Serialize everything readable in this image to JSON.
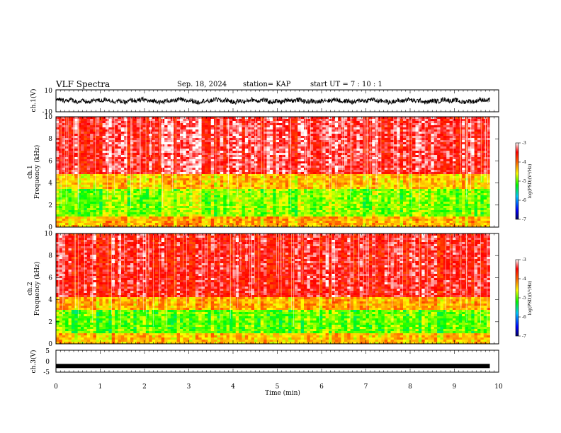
{
  "header": {
    "title": "VLF Spectra",
    "date": "Sep. 18, 2024",
    "station": "station= KAP",
    "start": "start  UT  =   7 : 10 : 1"
  },
  "chart_data": [
    {
      "type": "line",
      "ylabel": "ch.1(V)",
      "xlim": [
        0,
        10
      ],
      "ylim": [
        -10,
        10
      ],
      "yticks": [
        "10",
        "-10"
      ],
      "description_values": {
        "typical_range": [
          -3,
          3
        ],
        "end_time_min": 9.8
      }
    },
    {
      "type": "heatmap",
      "ylabel": "ch.1\nFrequency  (kHz)",
      "xlim": [
        0,
        10
      ],
      "ylim": [
        0,
        10
      ],
      "yticks": [
        "0",
        "2",
        "4",
        "6",
        "8",
        "10"
      ],
      "colorbar": {
        "label": "log(PSD)(V²/Hz)",
        "ticks": [
          "-3",
          "-4",
          "-5",
          "-6",
          "-7"
        ],
        "range": [
          -7,
          -3
        ]
      },
      "bands_khz": [
        {
          "from": 0,
          "to": 1,
          "level": -4.3
        },
        {
          "from": 1,
          "to": 3.5,
          "level": -4.9
        },
        {
          "from": 3.5,
          "to": 4.8,
          "level": -4.4
        },
        {
          "from": 4.8,
          "to": 10,
          "level": -3.4
        }
      ]
    },
    {
      "type": "heatmap",
      "ylabel": "ch.2\nFrequency  (kHz)",
      "xlim": [
        0,
        10
      ],
      "ylim": [
        0,
        10
      ],
      "yticks": [
        "0",
        "2",
        "4",
        "6",
        "8",
        "10"
      ],
      "colorbar": {
        "label": "log(PSD)(V²/Hz)",
        "ticks": [
          "-3",
          "-4",
          "-5",
          "-6",
          "-7"
        ],
        "range": [
          -7,
          -3
        ]
      },
      "bands_khz": [
        {
          "from": 0,
          "to": 1,
          "level": -4.4
        },
        {
          "from": 1,
          "to": 3,
          "level": -5.0
        },
        {
          "from": 3,
          "to": 4.2,
          "level": -4.3
        },
        {
          "from": 4.2,
          "to": 10,
          "level": -3.5
        }
      ]
    },
    {
      "type": "line",
      "ylabel": "ch.3(V)",
      "xlabel": "Time  (min)",
      "xlim": [
        0,
        10
      ],
      "ylim": [
        -5,
        5
      ],
      "yticks": [
        "5",
        "0",
        "-5"
      ],
      "xticks": [
        "0",
        "1",
        "2",
        "3",
        "4",
        "5",
        "6",
        "7",
        "8",
        "9",
        "10"
      ],
      "description_values": {
        "level": -2.2,
        "end_time_min": 9.8
      }
    }
  ],
  "colors": {
    "colormap": [
      "#000080",
      "#0000ff",
      "#00c8ff",
      "#00ff00",
      "#ffff00",
      "#ff8000",
      "#ff0000",
      "#ffffff"
    ]
  }
}
